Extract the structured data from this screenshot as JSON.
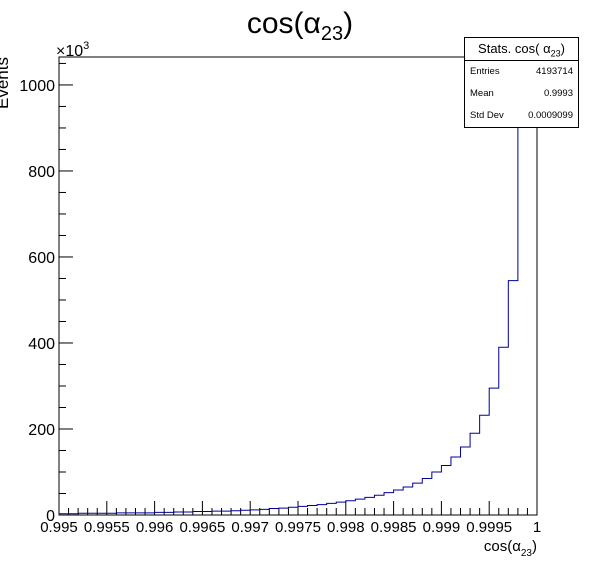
{
  "chart_data": {
    "type": "bar",
    "histogram_style": "step",
    "title_main": "cos(α",
    "title_sub": "23",
    "title_close": ")",
    "xlabel_main": "cos(α",
    "xlabel_sub": "23",
    "xlabel_close": ")",
    "ylabel": "Events",
    "y_multiplier_base": "×10",
    "y_multiplier_exp": "3",
    "xlim": [
      0.995,
      1.0
    ],
    "ylim": [
      0,
      1065
    ],
    "grid": false,
    "line_color": "#000099",
    "x_ticks": [
      "0.995",
      "0.9955",
      "0.996",
      "0.9965",
      "0.997",
      "0.9975",
      "0.998",
      "0.9985",
      "0.999",
      "0.9995",
      "1"
    ],
    "y_ticks": [
      "0",
      "200",
      "400",
      "600",
      "800",
      "1000"
    ],
    "bin_edges_start": 0.995,
    "bin_width": 0.0001,
    "values": [
      3,
      3,
      4,
      4,
      4,
      4,
      5,
      5,
      5,
      5,
      6,
      6,
      7,
      7,
      8,
      8,
      9,
      9,
      10,
      11,
      12,
      13,
      15,
      16,
      18,
      20,
      22,
      24,
      27,
      30,
      33,
      37,
      41,
      46,
      52,
      58,
      65,
      74,
      85,
      100,
      115,
      135,
      158,
      190,
      232,
      295,
      390,
      545,
      1065,
      1065
    ],
    "stats": {
      "title_main": "Stats. cos( α",
      "title_sub": "23",
      "title_close": ")",
      "entries_label": "Entries",
      "entries_value": "4193714",
      "mean_label": "Mean",
      "mean_value": "0.9993",
      "stddev_label": "Std Dev",
      "stddev_value": "0.0009099"
    }
  }
}
